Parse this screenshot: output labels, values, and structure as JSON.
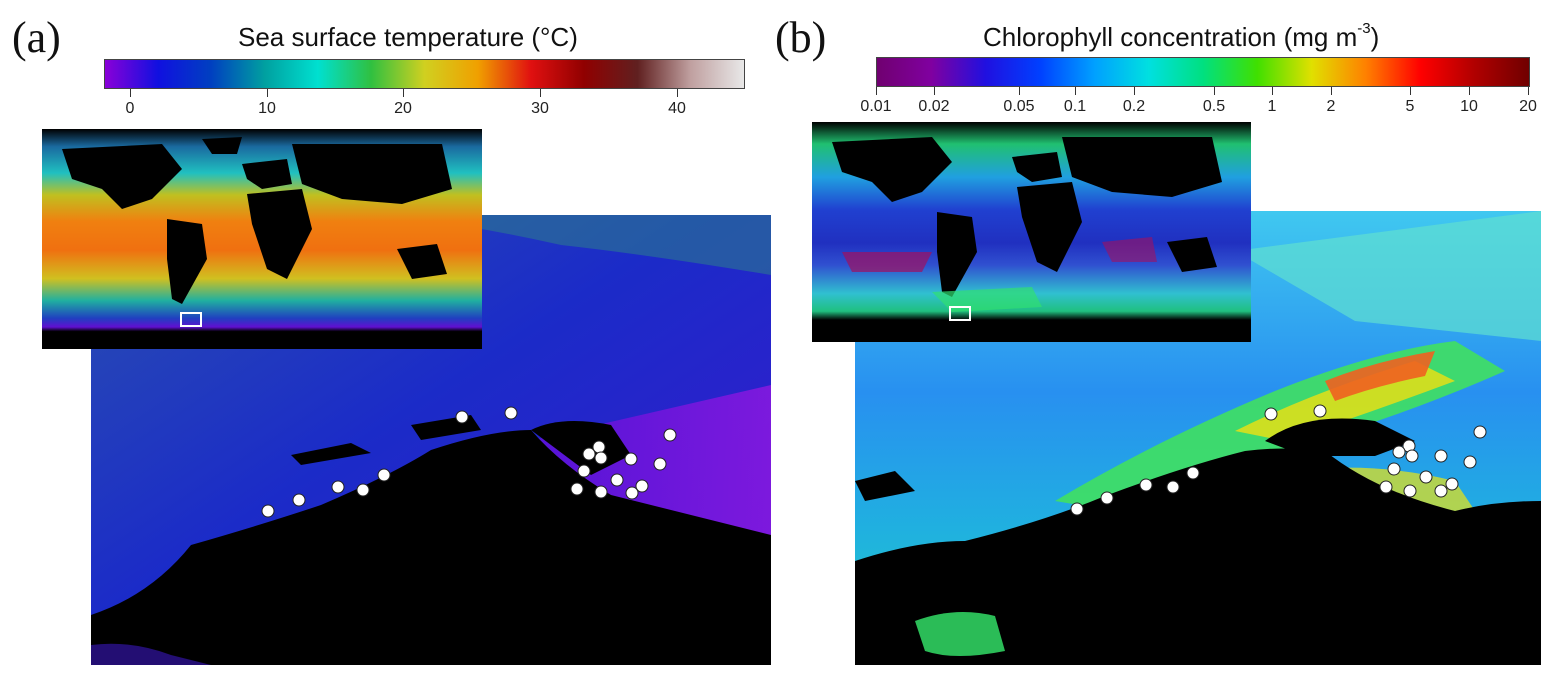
{
  "panels": [
    {
      "label": "(a)",
      "colorbar": {
        "title": "Sea surface temperature (°C)",
        "ticks": [
          "0",
          "10",
          "20",
          "30",
          "40"
        ],
        "colors": [
          "#8a00d8",
          "#1010e0",
          "#0040c0",
          "#00a0a0",
          "#00e0d0",
          "#30c040",
          "#d0d020",
          "#f0a000",
          "#e01010",
          "#900000",
          "#602020",
          "#c0a0a0",
          "#e8e8e8"
        ]
      },
      "inset_box_label": "",
      "stations": 18
    },
    {
      "label": "(b)",
      "colorbar": {
        "title": "Chlorophyll concentration (mg m",
        "title_sup": "-3",
        "title_end": ")",
        "ticks": [
          "0.01",
          "0.02",
          "0.05",
          "0.1",
          "0.2",
          "0.5",
          "1",
          "2",
          "5",
          "10",
          "20"
        ],
        "colors": [
          "#700070",
          "#8000a0",
          "#2010e0",
          "#0040ff",
          "#00a0ff",
          "#00e0e0",
          "#00e080",
          "#40e000",
          "#e0e000",
          "#ff8000",
          "#ff0000",
          "#b00000",
          "#700000"
        ]
      },
      "stations": 20
    }
  ]
}
